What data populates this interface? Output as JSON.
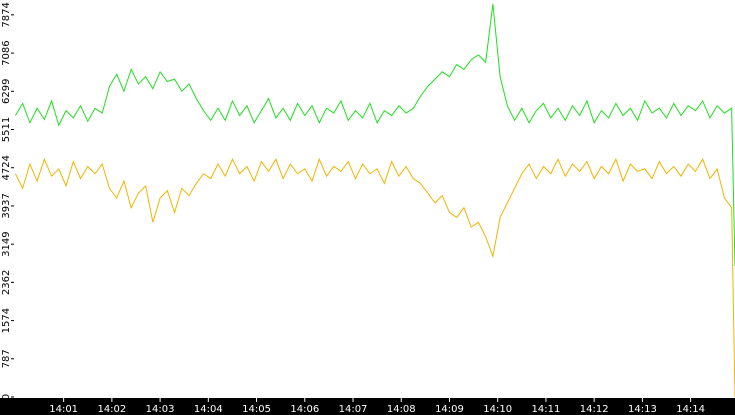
{
  "chart_data": {
    "type": "line",
    "x": [
      0,
      0.15,
      0.3,
      0.45,
      0.6,
      0.75,
      0.9,
      1.05,
      1.2,
      1.35,
      1.5,
      1.65,
      1.8,
      1.95,
      2.1,
      2.25,
      2.4,
      2.55,
      2.7,
      2.85,
      3,
      3.15,
      3.3,
      3.45,
      3.6,
      3.75,
      3.9,
      4.05,
      4.2,
      4.35,
      4.5,
      4.65,
      4.8,
      4.95,
      5.1,
      5.25,
      5.4,
      5.55,
      5.7,
      5.85,
      6,
      6.15,
      6.3,
      6.45,
      6.6,
      6.75,
      6.9,
      7.05,
      7.2,
      7.35,
      7.5,
      7.65,
      7.8,
      7.95,
      8.1,
      8.25,
      8.4,
      8.55,
      8.7,
      8.85,
      9,
      9.15,
      9.3,
      9.45,
      9.6,
      9.75,
      9.9,
      10.05,
      10.2,
      10.35,
      10.5,
      10.65,
      10.8,
      10.95,
      11.1,
      11.25,
      11.4,
      11.55,
      11.7,
      11.85,
      12,
      12.15,
      12.3,
      12.45,
      12.6,
      12.75,
      12.9,
      13.05,
      13.2,
      13.35,
      13.5,
      13.65,
      13.8,
      13.95,
      14.1,
      14.25,
      14.4,
      14.55,
      14.7,
      14.85,
      14.92
    ],
    "series": [
      {
        "color": "#f0b400",
        "values": [
          4600,
          4300,
          4800,
          4450,
          4900,
          4550,
          4700,
          4350,
          4850,
          4500,
          4750,
          4600,
          4800,
          4300,
          4100,
          4450,
          3900,
          4200,
          4350,
          3600,
          4100,
          4250,
          3800,
          4300,
          4150,
          4400,
          4600,
          4500,
          4800,
          4550,
          4900,
          4600,
          4750,
          4450,
          4850,
          4650,
          4900,
          4500,
          4800,
          4600,
          4700,
          4450,
          4900,
          4550,
          4750,
          4650,
          4850,
          4500,
          4800,
          4600,
          4700,
          4400,
          4850,
          4550,
          4750,
          4500,
          4400,
          4200,
          4000,
          4150,
          3800,
          3700,
          3900,
          3500,
          3600,
          3300,
          2900,
          3700,
          4000,
          4300,
          4600,
          4800,
          4500,
          4750,
          4600,
          4900,
          4550,
          4800,
          4650,
          4850,
          4500,
          4750,
          4600,
          4900,
          4450,
          4800,
          4650,
          4700,
          4500,
          4850,
          4600,
          4750,
          4550,
          4800,
          4650,
          4900,
          4500,
          4700,
          4100,
          3900,
          0
        ]
      },
      {
        "color": "#1ee01e",
        "values": [
          5800,
          6050,
          5650,
          5950,
          5720,
          6100,
          5600,
          5900,
          5750,
          6000,
          5680,
          5950,
          5850,
          6400,
          6650,
          6300,
          6750,
          6450,
          6600,
          6350,
          6700,
          6500,
          6550,
          6300,
          6450,
          6150,
          5900,
          5700,
          5950,
          5700,
          6100,
          5800,
          6000,
          5650,
          5900,
          6150,
          5750,
          5950,
          5700,
          6050,
          5800,
          6000,
          5650,
          5950,
          5850,
          6100,
          5700,
          5900,
          5750,
          6050,
          5650,
          5900,
          5800,
          6000,
          5850,
          5950,
          6200,
          6400,
          6550,
          6700,
          6600,
          6850,
          6750,
          6950,
          7050,
          6900,
          8100,
          6600,
          6000,
          5700,
          5950,
          5650,
          5900,
          6050,
          5750,
          5950,
          5700,
          6000,
          5800,
          6100,
          5650,
          5900,
          5750,
          6050,
          5800,
          5950,
          5700,
          6100,
          5850,
          5950,
          5750,
          6050,
          5800,
          6000,
          5900,
          6100,
          5750,
          6000,
          5850,
          5950,
          2700
        ]
      }
    ],
    "xlim": [
      -0.05,
      14.92
    ],
    "xticks": [
      {
        "value": 1,
        "label": "14:01"
      },
      {
        "value": 2,
        "label": "14:02"
      },
      {
        "value": 3,
        "label": "14:03"
      },
      {
        "value": 4,
        "label": "14:04"
      },
      {
        "value": 5,
        "label": "14:05"
      },
      {
        "value": 6,
        "label": "14:06"
      },
      {
        "value": 7,
        "label": "14:07"
      },
      {
        "value": 8,
        "label": "14:08"
      },
      {
        "value": 9,
        "label": "14:09"
      },
      {
        "value": 10,
        "label": "14:10"
      },
      {
        "value": 11,
        "label": "14:11"
      },
      {
        "value": 12,
        "label": "14:12"
      },
      {
        "value": 13,
        "label": "14:13"
      },
      {
        "value": 14,
        "label": "14:14"
      }
    ],
    "ylim": [
      0,
      8180
    ],
    "yticks": [
      0,
      787,
      1574,
      2362,
      3149,
      3937,
      4724,
      5511,
      6299,
      7086,
      7874
    ],
    "grid": false
  }
}
